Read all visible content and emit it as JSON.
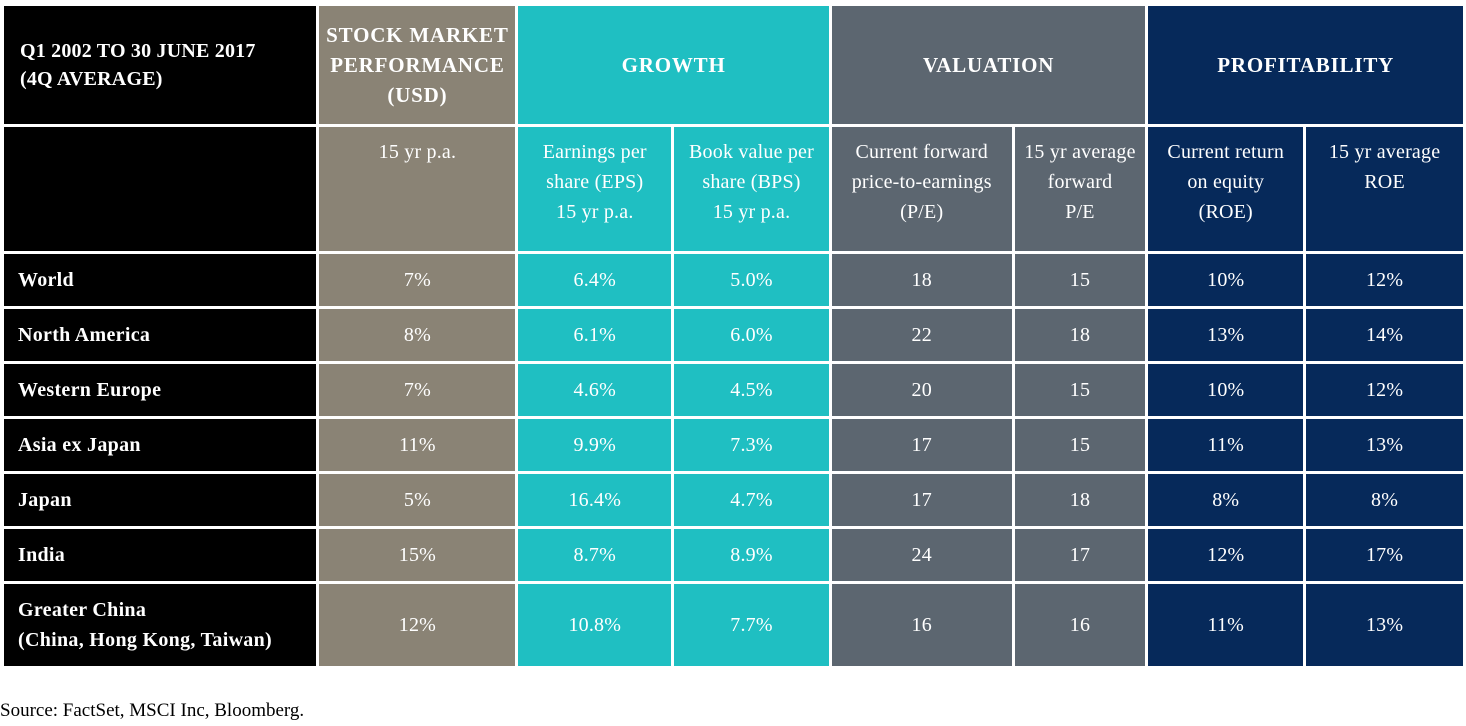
{
  "table": {
    "title_lines": [
      "Q1 2002 TO 30 JUNE 2017",
      "(4Q AVERAGE)"
    ],
    "groups": {
      "market": [
        "STOCK MARKET",
        "PERFORMANCE",
        "(USD)"
      ],
      "growth": "GROWTH",
      "valuation": "VALUATION",
      "profitability": "PROFITABILITY"
    },
    "subheaders": [
      [
        "15 yr p.a."
      ],
      [
        "Earnings per",
        "share (EPS)",
        "15 yr p.a."
      ],
      [
        "Book value per",
        "share (BPS)",
        "15 yr p.a."
      ],
      [
        "Current forward",
        "price-to-earnings",
        "(P/E)"
      ],
      [
        "15 yr average",
        "forward",
        "P/E"
      ],
      [
        "Current return",
        "on equity",
        "(ROE)"
      ],
      [
        "15 yr average",
        "ROE"
      ]
    ],
    "rows": [
      {
        "label": [
          "World"
        ],
        "values": [
          "7%",
          "6.4%",
          "5.0%",
          "18",
          "15",
          "10%",
          "12%"
        ]
      },
      {
        "label": [
          "North America"
        ],
        "values": [
          "8%",
          "6.1%",
          "6.0%",
          "22",
          "18",
          "13%",
          "14%"
        ]
      },
      {
        "label": [
          "Western Europe"
        ],
        "values": [
          "7%",
          "4.6%",
          "4.5%",
          "20",
          "15",
          "10%",
          "12%"
        ]
      },
      {
        "label": [
          "Asia ex Japan"
        ],
        "values": [
          "11%",
          "9.9%",
          "7.3%",
          "17",
          "15",
          "11%",
          "13%"
        ]
      },
      {
        "label": [
          "Japan"
        ],
        "values": [
          "5%",
          "16.4%",
          "4.7%",
          "17",
          "18",
          "8%",
          "8%"
        ]
      },
      {
        "label": [
          "India"
        ],
        "values": [
          "15%",
          "8.7%",
          "8.9%",
          "24",
          "17",
          "12%",
          "17%"
        ]
      },
      {
        "label": [
          "Greater China",
          "(China, Hong Kong, Taiwan)"
        ],
        "values": [
          "12%",
          "10.8%",
          "7.7%",
          "16",
          "16",
          "11%",
          "13%"
        ]
      }
    ]
  },
  "source": "Source: FactSet, MSCI Inc, Bloomberg.",
  "colors": {
    "label_bg": "#000000",
    "market_bg": "#8a8375",
    "growth_bg": "#1fbfc2",
    "valuation_bg": "#5c6670",
    "profitability_bg": "#06295a"
  }
}
